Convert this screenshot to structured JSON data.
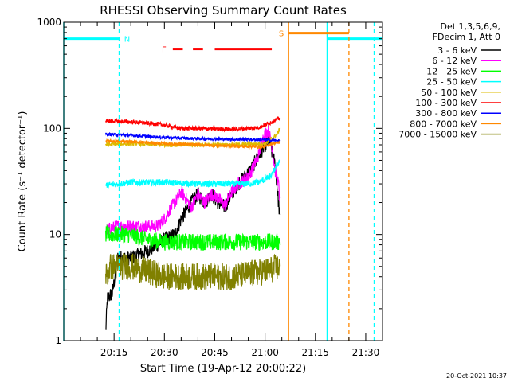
{
  "chart_data": {
    "type": "line",
    "title": "RHESSI Observing Summary Count Rates",
    "xlabel": "Start Time (19-Apr-12 20:00:22)",
    "ylabel": "Count Rate (s⁻¹ detector⁻¹)",
    "y_scale": "log",
    "ylim": [
      1,
      1000
    ],
    "y_ticks": [
      {
        "value": 1,
        "label": "1"
      },
      {
        "value": 10,
        "label": "10"
      },
      {
        "value": 100,
        "label": "100"
      },
      {
        "value": 1000,
        "label": "1000"
      }
    ],
    "xlim_minutes": [
      0,
      95
    ],
    "x_ticks": [
      {
        "minute": 15,
        "label": "20:15"
      },
      {
        "minute": 30,
        "label": "20:30"
      },
      {
        "minute": 45,
        "label": "20:45"
      },
      {
        "minute": 60,
        "label": "21:00"
      },
      {
        "minute": 75,
        "label": "21:15"
      },
      {
        "minute": 90,
        "label": "21:30"
      }
    ],
    "legend_header": [
      "Det 1,3,5,6,9,",
      "FDecim 1, Att 0"
    ],
    "legend_placement": "right",
    "series": [
      {
        "name": "3 - 6 keV",
        "color": "#000000",
        "start": 12.5,
        "end": 64.5,
        "points": [
          [
            12.5,
            1.2
          ],
          [
            13,
            2.5
          ],
          [
            14.5,
            2.8
          ],
          [
            15.5,
            4.5
          ],
          [
            16,
            6
          ],
          [
            20,
            6
          ],
          [
            25,
            7
          ],
          [
            28,
            8
          ],
          [
            30,
            9
          ],
          [
            33,
            10
          ],
          [
            35,
            14
          ],
          [
            38,
            20
          ],
          [
            40,
            24
          ],
          [
            42,
            20
          ],
          [
            44,
            24
          ],
          [
            46,
            20
          ],
          [
            48,
            18
          ],
          [
            50,
            24
          ],
          [
            52,
            30
          ],
          [
            54,
            35
          ],
          [
            56,
            42
          ],
          [
            58,
            55
          ],
          [
            60,
            70
          ],
          [
            61.5,
            75
          ],
          [
            62,
            60
          ],
          [
            63,
            45
          ],
          [
            64,
            20
          ],
          [
            64.5,
            14
          ]
        ],
        "noise": 0.07
      },
      {
        "name": "6 - 12 keV",
        "color": "#ff00ff",
        "start": 12.5,
        "end": 64.5,
        "points": [
          [
            12.5,
            11
          ],
          [
            16,
            12
          ],
          [
            20,
            12
          ],
          [
            25,
            12
          ],
          [
            28,
            12
          ],
          [
            30,
            14
          ],
          [
            32,
            18
          ],
          [
            34,
            22
          ],
          [
            35,
            25
          ],
          [
            36,
            23
          ],
          [
            38,
            18
          ],
          [
            40,
            24
          ],
          [
            42,
            20
          ],
          [
            44,
            24
          ],
          [
            46,
            22
          ],
          [
            48,
            19
          ],
          [
            50,
            25
          ],
          [
            52,
            30
          ],
          [
            54,
            33
          ],
          [
            56,
            40
          ],
          [
            58,
            55
          ],
          [
            59,
            75
          ],
          [
            60,
            90
          ],
          [
            61,
            95
          ],
          [
            62,
            70
          ],
          [
            63,
            40
          ],
          [
            64,
            30
          ],
          [
            64.5,
            20
          ]
        ],
        "noise": 0.06
      },
      {
        "name": "12 - 25 keV",
        "color": "#00ff00",
        "start": 12.5,
        "end": 64.5,
        "points": [
          [
            12.5,
            10
          ],
          [
            20,
            10
          ],
          [
            24,
            9
          ],
          [
            30,
            8.5
          ],
          [
            40,
            8.5
          ],
          [
            50,
            8.5
          ],
          [
            60,
            8.5
          ],
          [
            64,
            8.5
          ],
          [
            64.5,
            9
          ]
        ],
        "noise": 0.08
      },
      {
        "name": "25 - 50 keV",
        "color": "#00ffff",
        "start": 12.5,
        "end": 64.5,
        "points": [
          [
            12.5,
            29
          ],
          [
            20,
            31
          ],
          [
            30,
            31
          ],
          [
            40,
            30
          ],
          [
            50,
            30
          ],
          [
            55,
            30
          ],
          [
            58,
            31
          ],
          [
            60,
            33
          ],
          [
            62,
            36
          ],
          [
            63,
            42
          ],
          [
            64,
            48
          ],
          [
            64.5,
            50
          ]
        ],
        "noise": 0.03
      },
      {
        "name": "50 - 100 keV",
        "color": "#ddbb00",
        "start": 12.5,
        "end": 64.5,
        "points": [
          [
            12.5,
            70
          ],
          [
            20,
            72
          ],
          [
            30,
            70
          ],
          [
            40,
            70
          ],
          [
            50,
            70
          ],
          [
            60,
            72
          ],
          [
            62,
            80
          ],
          [
            63.5,
            88
          ],
          [
            64.5,
            100
          ]
        ],
        "noise": 0.02
      },
      {
        "name": "100 - 300 keV",
        "color": "#ff0000",
        "start": 12.5,
        "end": 64.5,
        "points": [
          [
            12.5,
            118
          ],
          [
            20,
            115
          ],
          [
            28,
            110
          ],
          [
            35,
            100
          ],
          [
            40,
            100
          ],
          [
            50,
            98
          ],
          [
            58,
            102
          ],
          [
            60,
            108
          ],
          [
            62,
            115
          ],
          [
            63,
            120
          ],
          [
            64.5,
            125
          ]
        ],
        "noise": 0.02
      },
      {
        "name": "300 - 800 keV",
        "color": "#0000ff",
        "start": 12.5,
        "end": 64.5,
        "points": [
          [
            12.5,
            88
          ],
          [
            20,
            86
          ],
          [
            30,
            82
          ],
          [
            40,
            80
          ],
          [
            50,
            79
          ],
          [
            60,
            78
          ],
          [
            64.5,
            76
          ]
        ],
        "noise": 0.015
      },
      {
        "name": "800 - 7000 keV",
        "color": "#ff8800",
        "start": 12.5,
        "end": 64.5,
        "points": [
          [
            12.5,
            76
          ],
          [
            20,
            75
          ],
          [
            30,
            72
          ],
          [
            40,
            70
          ],
          [
            50,
            68
          ],
          [
            60,
            67
          ],
          [
            62,
            72
          ],
          [
            64.5,
            74
          ]
        ],
        "noise": 0.015
      },
      {
        "name": "7000 - 15000 keV",
        "color": "#808000",
        "start": 12.5,
        "end": 64.5,
        "points": [
          [
            12.5,
            4
          ],
          [
            14,
            5
          ],
          [
            20,
            5
          ],
          [
            30,
            4
          ],
          [
            40,
            4
          ],
          [
            50,
            4
          ],
          [
            60,
            4.5
          ],
          [
            64.5,
            5
          ]
        ],
        "noise": 0.13
      }
    ],
    "annotations": [
      {
        "label": "N",
        "color": "#00ffff",
        "kind": "night",
        "level": 700,
        "bars_minutes": [
          [
            0,
            16.5
          ],
          [
            78.5,
            95
          ]
        ],
        "solid_vlines": [
          0,
          78.5
        ],
        "dashed_vlines": [
          16.5,
          92.5
        ]
      },
      {
        "label": "S",
        "color": "#ff8800",
        "kind": "saa",
        "level": 790,
        "bars_minutes": [
          [
            67,
            85
          ]
        ],
        "solid_vlines": [
          67
        ],
        "dashed_vlines": [
          85
        ]
      },
      {
        "label": "F",
        "color": "#ff0000",
        "kind": "flare",
        "level": 560,
        "bars_minutes": [
          [
            32.5,
            35.5
          ],
          [
            38.5,
            41.5
          ],
          [
            45,
            62
          ]
        ]
      }
    ]
  },
  "footer": {
    "timestamp": "20-Oct-2021 10:37"
  }
}
